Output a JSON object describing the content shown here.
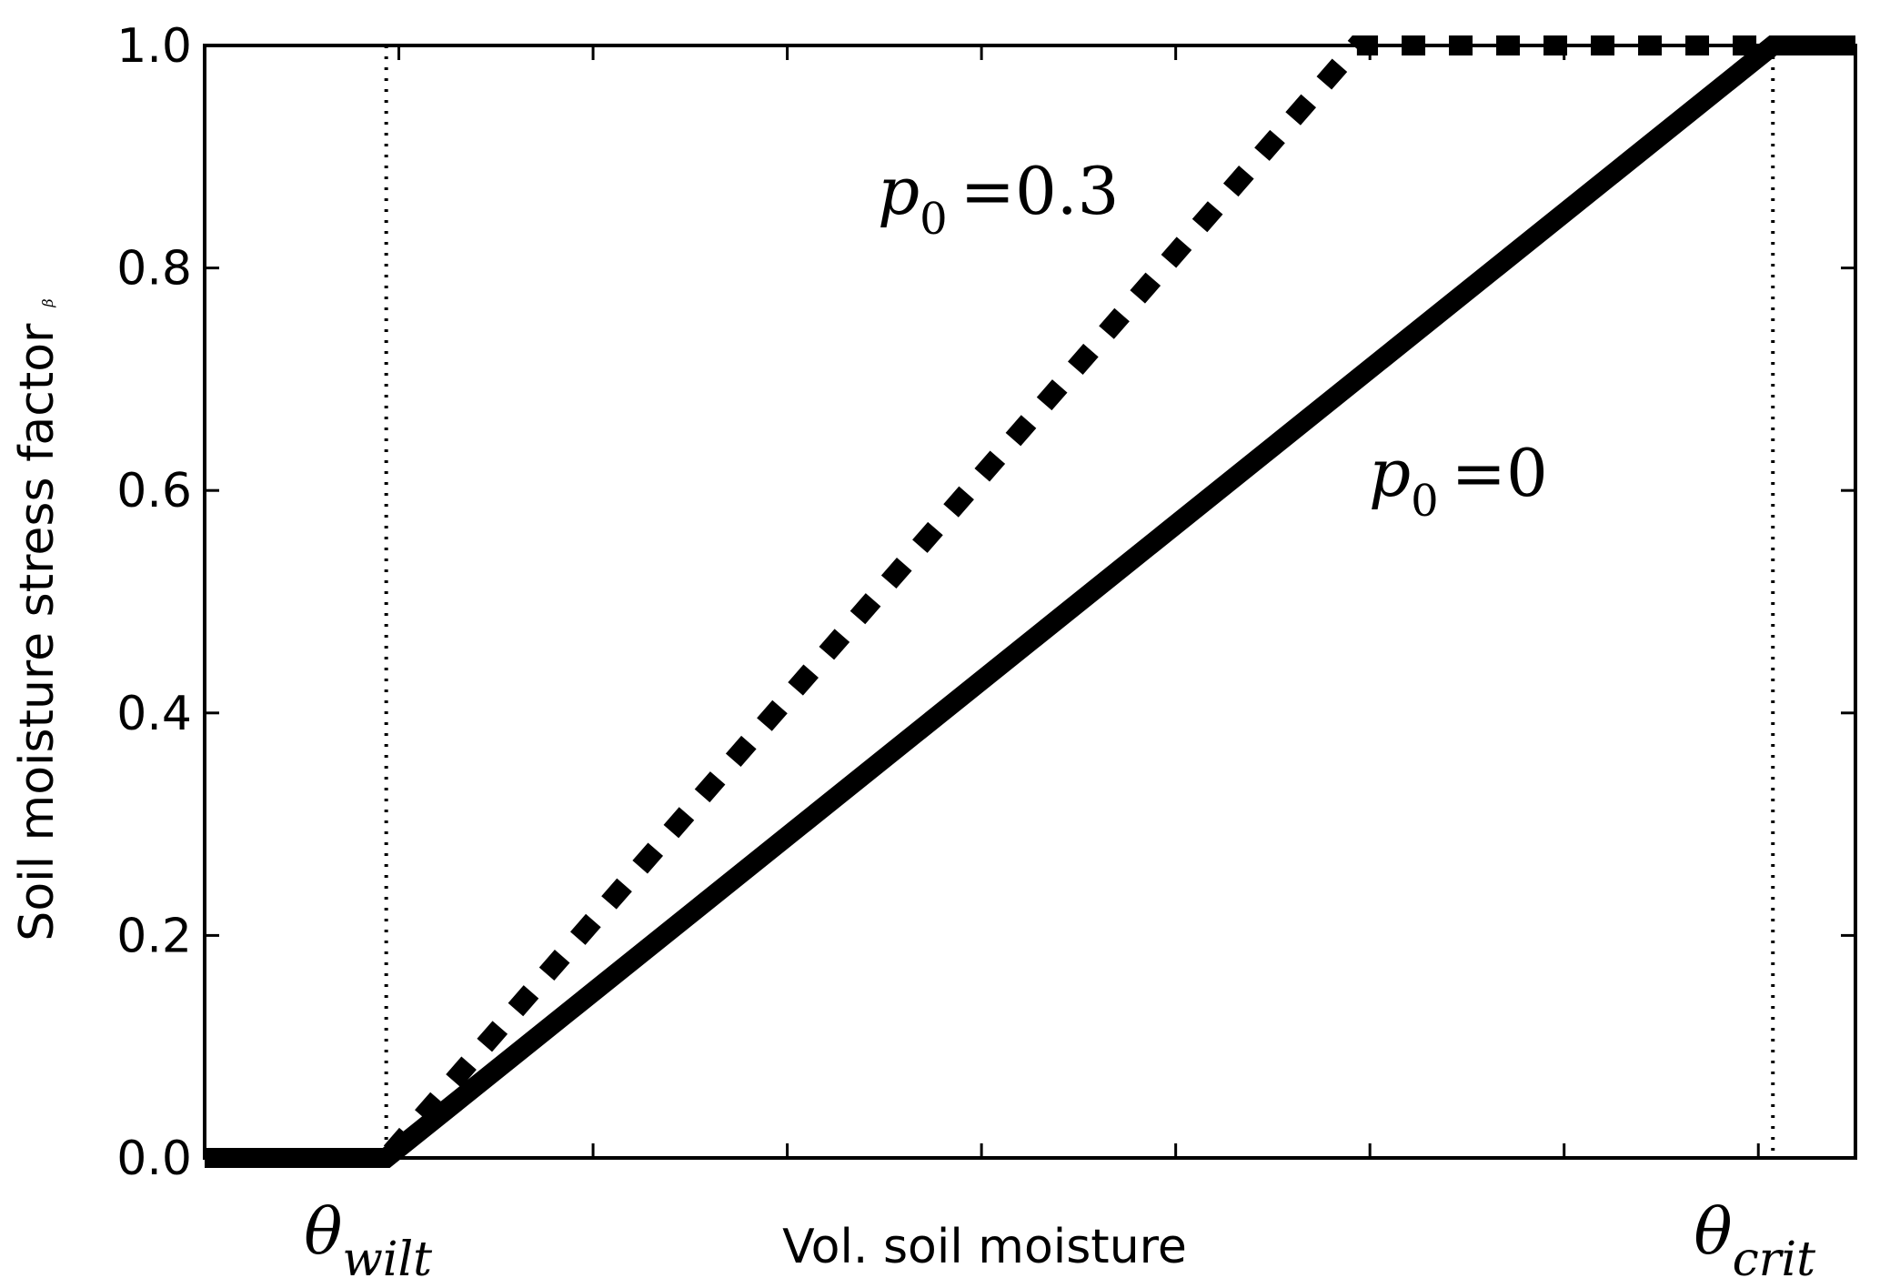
{
  "chart_data": {
    "type": "line",
    "title": "",
    "xlabel": "Vol. soil moisture",
    "ylabel": "Soil moisture stress factor",
    "ylabel_symbol": "β",
    "ylim": [
      0,
      1
    ],
    "xlim": [
      0,
      1
    ],
    "yticks": [
      "0.0",
      "0.2",
      "0.4",
      "0.6",
      "0.8",
      "1.0"
    ],
    "xtick_labels": [
      {
        "symbol": "θ",
        "subscript": "wilt"
      },
      {
        "symbol": "θ",
        "subscript": "crit"
      }
    ],
    "reference_lines": [
      {
        "name": "theta_wilt",
        "x": 0.11,
        "style": "dotted"
      },
      {
        "name": "theta_crit",
        "x": 0.95,
        "style": "dotted"
      }
    ],
    "series": [
      {
        "name": "p0=0",
        "label_symbol": "p",
        "label_subscript": "0",
        "label_value": "=0",
        "style": "solid",
        "x": [
          0.0,
          0.11,
          0.95,
          1.0
        ],
        "y": [
          0.0,
          0.0,
          1.0,
          1.0
        ]
      },
      {
        "name": "p0=0.3",
        "label_symbol": "p",
        "label_subscript": "0",
        "label_value": "=0.3",
        "style": "dashed",
        "x": [
          0.0,
          0.11,
          0.698,
          1.0
        ],
        "y": [
          0.0,
          0.0,
          1.0,
          1.0
        ]
      }
    ],
    "grid": false,
    "legend": "none"
  }
}
